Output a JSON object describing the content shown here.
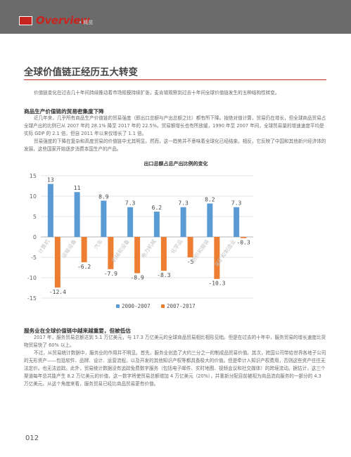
{
  "header": {
    "title": "Overview",
    "subtitle": "• 概览",
    "accent_color": "#c8241f",
    "bar_color": "#6b6b6b"
  },
  "page": {
    "title": "全球价值链正经历五大转变",
    "intro": "价值链变化在过去几十年间持续推动着市场规模持续扩张，麦肯锡观察到过去十年间全球价值链发生的五种结构性转变。",
    "number": "012"
  },
  "section1": {
    "heading": "商品生产价值链的贸易密集度下降",
    "para1": "近几年来，几乎所有商品生产价值链的贸易强度（即出口总额与产出总额之比）都有所下降。按绝对值计算，贸易仍在增长，但全球商品贸易占全球产出的比例已从 2007 年的 28.1% 降至 2017 年的 22.5%。贸易额增长也有所放缓，1990 年至 2007 年间，全球贸易量的增速速度平均是实际 GDP 的 2.1 倍，但自 2011 年以来仅增长了 1.1 倍。",
    "para2": "贸易强度的下降在复杂和高度贸易的价值链中尤其明显。然而，这一趋势并不意味着全球化已经结束。相反，它反映了中国和其他新兴经济体的发展，这些国家开始逐步消费本国生产的产品。"
  },
  "chart_data": {
    "type": "bar",
    "title": "出口总额占总产出比例的变化",
    "categories": [
      "计算机",
      "运输设备",
      "汽车",
      "机械和设备",
      "电力机械",
      "化学品",
      "纺织和服装",
      "采矿和制造业"
    ],
    "series": [
      {
        "name": "2000-2007",
        "values": [
          13,
          11,
          8.9,
          7.3,
          6.2,
          7.3,
          8.2,
          7.3
        ],
        "color": "#5b9bd5"
      },
      {
        "name": "2007-2017",
        "values": [
          -12.4,
          -6.2,
          -7.9,
          -8.9,
          -8.3,
          -5,
          -10.3,
          -0.3
        ],
        "color": "#ed7d31"
      }
    ],
    "value_labels": {
      "2000-2007": [
        "13",
        "11",
        "8.9",
        "7.3",
        "6.2",
        "7.3",
        "8.2",
        "7.3"
      ],
      "2007-2017": [
        "-12.4",
        "-6.2",
        "-7.9",
        "-8.9",
        "-8.3",
        "-5",
        "-10.3",
        "-0.3"
      ]
    },
    "ylim": [
      -15,
      15
    ],
    "yticks": [
      15,
      10,
      5,
      0,
      -5,
      -10,
      -15
    ],
    "grid": true,
    "legend_position": "bottom"
  },
  "section2": {
    "heading": "服务业在全球价值链中越来越重要，但被低估",
    "para1": "2017 年，服务贸易总额达到 5.1 万亿美元，与 17.3 万亿美元的全球商品贸易相比相形见绌。但是在过去的十年中，服务贸易的增长速度比货物贸易快了 60% 以上。",
    "para2": "不过，从贸易统计数据中，服务业的作用并不明显。首先，服务业创造了大约三分之一的制成品贸易价值。其次，跨国公司带给世界各地子公司的无形资产——包括软件、品牌、设计、运营流程，以及开发的其他知识产权等都具备极大的价值。但是牵计入知识产权费用，否则这些资产往往无法定价。也无法追踪。此外，贸易统计数据没有追踪免费数字服务（包括电子邮件、实时地图、视频会议和社交媒体）的跨境流动。据估计，这三个渠道每年总共能产生 8.2 万亿美元的价值，这一数字将使贸易总额增加 4 万亿美元（20%），并重新分配目前被视为商品流向服务的一部分的 4.3 万亿美元。从这个角度来看，服务贸易已经比商品贸易更有价值。"
  }
}
